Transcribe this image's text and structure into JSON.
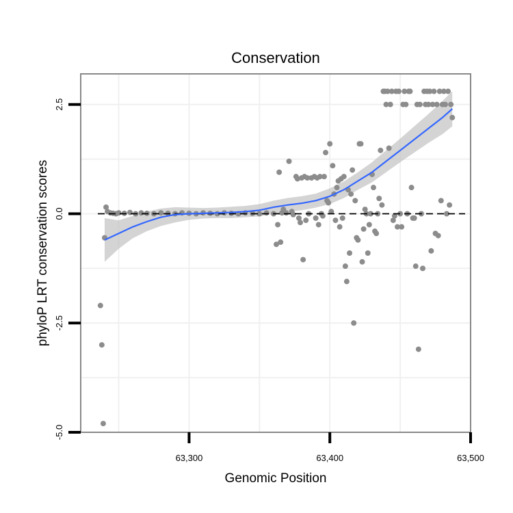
{
  "chart_data": {
    "type": "scatter",
    "title": "Conservation",
    "xlabel": "Genomic Position",
    "ylabel": "phyloP LRT conservation scores",
    "xlim": [
      63223,
      63500
    ],
    "ylim": [
      -5.0,
      3.2
    ],
    "x_ticks": [
      {
        "value": 63300,
        "label": "63,300"
      },
      {
        "value": 63400,
        "label": "63,400"
      },
      {
        "value": 63500,
        "label": "63,500"
      }
    ],
    "y_ticks": [
      {
        "value": 2.5,
        "label": "2.5"
      },
      {
        "value": 0.0,
        "label": "0.0"
      },
      {
        "value": -2.5,
        "label": "-2.5"
      },
      {
        "value": -5.0,
        "label": "-5.0"
      }
    ],
    "x_minor_gridlines": [
      63250,
      63350,
      63450
    ],
    "y_minor_gridlines": [
      1.25,
      -1.25,
      -3.75
    ],
    "reference_line": {
      "y": 0,
      "style": "dashed",
      "color": "#000000"
    },
    "grid": true,
    "colors": {
      "points": "#8c8c8c",
      "smooth": "#3366ff",
      "ribbon": "#bdbdbd",
      "panel_border": "#888888",
      "grid": "#f0f0f0"
    },
    "points": [
      [
        63237,
        -2.1
      ],
      [
        63238,
        -3.0
      ],
      [
        63239,
        -4.8
      ],
      [
        63240,
        -0.55
      ],
      [
        63241,
        0.15
      ],
      [
        63242,
        0.05
      ],
      [
        63244,
        0.02
      ],
      [
        63246,
        0.01
      ],
      [
        63248,
        0.0
      ],
      [
        63250,
        0.02
      ],
      [
        63254,
        0.01
      ],
      [
        63258,
        0.03
      ],
      [
        63262,
        0.0
      ],
      [
        63266,
        0.02
      ],
      [
        63270,
        0.01
      ],
      [
        63275,
        0.0
      ],
      [
        63280,
        0.02
      ],
      [
        63285,
        0.01
      ],
      [
        63290,
        0.0
      ],
      [
        63295,
        0.02
      ],
      [
        63300,
        0.01
      ],
      [
        63305,
        0.0
      ],
      [
        63310,
        0.02
      ],
      [
        63315,
        0.01
      ],
      [
        63320,
        0.0
      ],
      [
        63325,
        0.02
      ],
      [
        63330,
        0.01
      ],
      [
        63335,
        0.0
      ],
      [
        63340,
        0.02
      ],
      [
        63345,
        0.01
      ],
      [
        63350,
        0.0
      ],
      [
        63355,
        0.02
      ],
      [
        63360,
        0.0
      ],
      [
        63362,
        -0.7
      ],
      [
        63363,
        -0.25
      ],
      [
        63364,
        0.95
      ],
      [
        63365,
        -0.65
      ],
      [
        63366,
        0.02
      ],
      [
        63367,
        0.1
      ],
      [
        63369,
        0.02
      ],
      [
        63371,
        1.2
      ],
      [
        63373,
        0.05
      ],
      [
        63374,
        -0.02
      ],
      [
        63376,
        0.85
      ],
      [
        63377,
        0.8
      ],
      [
        63378,
        -0.1
      ],
      [
        63379,
        -0.2
      ],
      [
        63380,
        0.82
      ],
      [
        63381,
        -1.05
      ],
      [
        63382,
        0.85
      ],
      [
        63383,
        -0.15
      ],
      [
        63384,
        0.82
      ],
      [
        63385,
        0.0
      ],
      [
        63387,
        0.82
      ],
      [
        63389,
        0.85
      ],
      [
        63390,
        -0.1
      ],
      [
        63391,
        0.82
      ],
      [
        63392,
        -0.25
      ],
      [
        63393,
        0.85
      ],
      [
        63394,
        0.0
      ],
      [
        63395,
        -0.05
      ],
      [
        63396,
        0.85
      ],
      [
        63397,
        1.4
      ],
      [
        63398,
        0.3
      ],
      [
        63399,
        0.25
      ],
      [
        63400,
        1.6
      ],
      [
        63401,
        0.05
      ],
      [
        63402,
        1.1
      ],
      [
        63403,
        0.45
      ],
      [
        63404,
        -0.15
      ],
      [
        63405,
        0.6
      ],
      [
        63406,
        0.75
      ],
      [
        63407,
        -0.3
      ],
      [
        63408,
        0.8
      ],
      [
        63409,
        -0.1
      ],
      [
        63410,
        0.85
      ],
      [
        63411,
        -1.2
      ],
      [
        63412,
        -1.55
      ],
      [
        63413,
        0.55
      ],
      [
        63414,
        -0.9
      ],
      [
        63415,
        0.45
      ],
      [
        63416,
        1.0
      ],
      [
        63417,
        -2.5
      ],
      [
        63418,
        0.3
      ],
      [
        63419,
        -0.55
      ],
      [
        63420,
        -0.6
      ],
      [
        63421,
        1.6
      ],
      [
        63422,
        1.6
      ],
      [
        63423,
        -1.1
      ],
      [
        63424,
        -0.35
      ],
      [
        63425,
        0.1
      ],
      [
        63426,
        0.0
      ],
      [
        63427,
        -0.9
      ],
      [
        63428,
        -0.25
      ],
      [
        63429,
        0.0
      ],
      [
        63430,
        0.9
      ],
      [
        63431,
        0.6
      ],
      [
        63432,
        -0.4
      ],
      [
        63433,
        -0.45
      ],
      [
        63434,
        0.0
      ],
      [
        63435,
        0.35
      ],
      [
        63436,
        1.45
      ],
      [
        63437,
        0.2
      ],
      [
        63438,
        2.8
      ],
      [
        63439,
        2.8
      ],
      [
        63440,
        2.5
      ],
      [
        63441,
        2.8
      ],
      [
        63442,
        1.5
      ],
      [
        63443,
        2.5
      ],
      [
        63444,
        2.8
      ],
      [
        63445,
        -0.15
      ],
      [
        63446,
        -0.05
      ],
      [
        63447,
        2.8
      ],
      [
        63448,
        -0.3
      ],
      [
        63449,
        2.8
      ],
      [
        63450,
        0.0
      ],
      [
        63451,
        -0.3
      ],
      [
        63452,
        2.5
      ],
      [
        63453,
        2.8
      ],
      [
        63454,
        2.5
      ],
      [
        63455,
        0.0
      ],
      [
        63456,
        2.8
      ],
      [
        63457,
        2.8
      ],
      [
        63458,
        0.6
      ],
      [
        63459,
        -0.1
      ],
      [
        63460,
        -0.1
      ],
      [
        63461,
        -1.2
      ],
      [
        63462,
        2.5
      ],
      [
        63463,
        -3.1
      ],
      [
        63464,
        2.5
      ],
      [
        63465,
        0.0
      ],
      [
        63466,
        -1.25
      ],
      [
        63467,
        2.8
      ],
      [
        63468,
        2.5
      ],
      [
        63469,
        2.8
      ],
      [
        63470,
        2.5
      ],
      [
        63471,
        2.8
      ],
      [
        63472,
        -0.85
      ],
      [
        63473,
        2.5
      ],
      [
        63474,
        2.8
      ],
      [
        63475,
        -0.45
      ],
      [
        63476,
        2.5
      ],
      [
        63477,
        -0.5
      ],
      [
        63478,
        2.8
      ],
      [
        63479,
        0.3
      ],
      [
        63480,
        2.5
      ],
      [
        63481,
        2.8
      ],
      [
        63482,
        2.5
      ],
      [
        63483,
        0.0
      ],
      [
        63484,
        2.8
      ],
      [
        63485,
        0.2
      ],
      [
        63486,
        2.5
      ],
      [
        63487,
        2.2
      ]
    ],
    "smooth_line": [
      [
        63240,
        -0.6
      ],
      [
        63250,
        -0.45
      ],
      [
        63260,
        -0.3
      ],
      [
        63270,
        -0.18
      ],
      [
        63280,
        -0.08
      ],
      [
        63290,
        -0.02
      ],
      [
        63300,
        0.0
      ],
      [
        63310,
        0.01
      ],
      [
        63320,
        0.02
      ],
      [
        63330,
        0.03
      ],
      [
        63340,
        0.05
      ],
      [
        63350,
        0.08
      ],
      [
        63360,
        0.15
      ],
      [
        63370,
        0.2
      ],
      [
        63380,
        0.24
      ],
      [
        63390,
        0.3
      ],
      [
        63400,
        0.4
      ],
      [
        63410,
        0.55
      ],
      [
        63420,
        0.75
      ],
      [
        63430,
        0.95
      ],
      [
        63440,
        1.2
      ],
      [
        63450,
        1.45
      ],
      [
        63460,
        1.7
      ],
      [
        63470,
        1.95
      ],
      [
        63480,
        2.2
      ],
      [
        63487,
        2.4
      ]
    ],
    "ribbon_upper": [
      [
        63240,
        -0.1
      ],
      [
        63250,
        -0.15
      ],
      [
        63260,
        -0.05
      ],
      [
        63270,
        0.05
      ],
      [
        63280,
        0.12
      ],
      [
        63290,
        0.15
      ],
      [
        63300,
        0.14
      ],
      [
        63310,
        0.13
      ],
      [
        63320,
        0.14
      ],
      [
        63330,
        0.16
      ],
      [
        63340,
        0.18
      ],
      [
        63350,
        0.22
      ],
      [
        63360,
        0.3
      ],
      [
        63370,
        0.36
      ],
      [
        63380,
        0.4
      ],
      [
        63390,
        0.46
      ],
      [
        63400,
        0.58
      ],
      [
        63410,
        0.74
      ],
      [
        63420,
        0.95
      ],
      [
        63430,
        1.18
      ],
      [
        63440,
        1.45
      ],
      [
        63450,
        1.72
      ],
      [
        63460,
        2.0
      ],
      [
        63470,
        2.28
      ],
      [
        63480,
        2.58
      ],
      [
        63487,
        2.8
      ]
    ],
    "ribbon_lower": [
      [
        63240,
        -1.1
      ],
      [
        63250,
        -0.8
      ],
      [
        63260,
        -0.56
      ],
      [
        63270,
        -0.4
      ],
      [
        63280,
        -0.28
      ],
      [
        63290,
        -0.2
      ],
      [
        63300,
        -0.14
      ],
      [
        63310,
        -0.11
      ],
      [
        63320,
        -0.1
      ],
      [
        63330,
        -0.1
      ],
      [
        63340,
        -0.08
      ],
      [
        63350,
        -0.06
      ],
      [
        63360,
        0.0
      ],
      [
        63370,
        0.04
      ],
      [
        63380,
        0.08
      ],
      [
        63390,
        0.14
      ],
      [
        63400,
        0.22
      ],
      [
        63410,
        0.36
      ],
      [
        63420,
        0.55
      ],
      [
        63430,
        0.72
      ],
      [
        63440,
        0.95
      ],
      [
        63450,
        1.18
      ],
      [
        63460,
        1.4
      ],
      [
        63470,
        1.62
      ],
      [
        63480,
        1.82
      ],
      [
        63487,
        2.0
      ]
    ]
  }
}
